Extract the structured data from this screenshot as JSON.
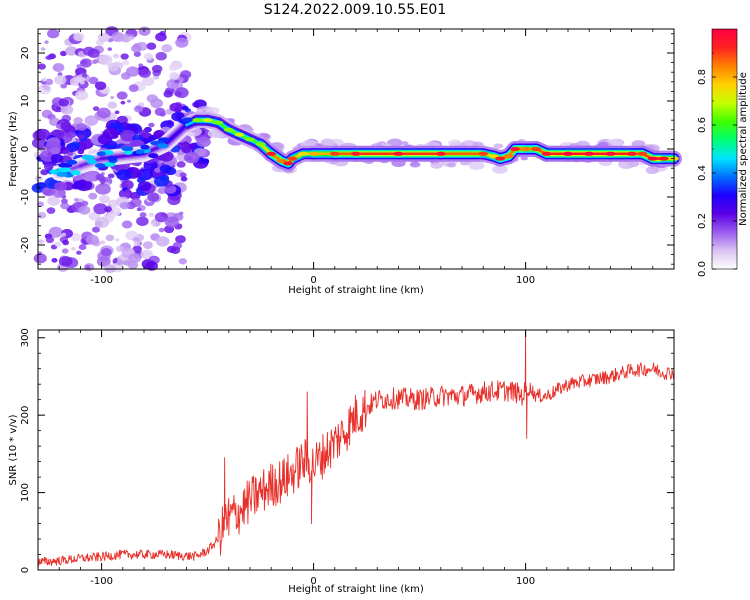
{
  "figure_title": "S124.2022.009.10.55.E01",
  "colors": {
    "snr_line": "#e8302a",
    "spectrum_gradient": [
      "#ffffff",
      "#d9c2f2",
      "#9b5cf0",
      "#5a00e6",
      "#1e00ff",
      "#0070ff",
      "#00e5ff",
      "#00ff70",
      "#40ff00",
      "#c8ff00",
      "#ffd000",
      "#ff8000",
      "#ff2020",
      "#ff0040"
    ]
  },
  "chart_data": [
    {
      "type": "heatmap",
      "title": "",
      "xlabel": "Height of straight line (km)",
      "ylabel": "Frequency (Hz)",
      "xlim": [
        -130,
        170
      ],
      "ylim": [
        -25,
        25
      ],
      "x_ticks": [
        -100,
        0,
        100
      ],
      "y_ticks": [
        -20,
        -10,
        0,
        10,
        20
      ],
      "x_tick_labels": [
        "-100",
        "0",
        "100"
      ],
      "y_tick_labels": [
        "-20",
        "-10",
        "0",
        "10",
        "20"
      ],
      "grid": false,
      "ridge": {
        "x": [
          -120,
          -110,
          -100,
          -90,
          -80,
          -70,
          -60,
          -55,
          -50,
          -45,
          -40,
          -35,
          -30,
          -25,
          -20,
          -15,
          -12,
          -10,
          -5,
          0,
          10,
          20,
          40,
          60,
          80,
          85,
          88,
          92,
          95,
          100,
          105,
          110,
          120,
          130,
          140,
          150,
          155,
          160,
          165,
          170
        ],
        "y": [
          -5,
          -3.5,
          -2,
          -1.5,
          -1,
          1,
          5,
          6,
          6,
          5.5,
          4,
          3,
          2,
          1,
          -1,
          -2.5,
          -3,
          -2,
          -1,
          -1,
          -1,
          -1,
          -1,
          -1,
          -1,
          -1.5,
          -2,
          -1.5,
          0,
          0,
          0,
          -1,
          -1,
          -1,
          -1,
          -1,
          -1,
          -2,
          -2,
          -2
        ],
        "amplitude": [
          0.15,
          0.2,
          0.2,
          0.25,
          0.2,
          0.25,
          0.3,
          0.6,
          0.65,
          0.6,
          0.6,
          0.65,
          0.6,
          0.6,
          0.9,
          0.8,
          0.9,
          0.85,
          0.7,
          0.75,
          0.85,
          0.9,
          0.92,
          0.9,
          0.85,
          0.7,
          0.9,
          0.8,
          0.9,
          0.8,
          0.85,
          0.9,
          0.95,
          0.95,
          0.95,
          0.9,
          0.85,
          0.95,
          0.9,
          0.7
        ]
      },
      "colorbar": {
        "label": "Normalized spectral amplitude",
        "range": [
          0,
          1
        ],
        "ticks": [
          0.0,
          0.2,
          0.4,
          0.6,
          0.8
        ],
        "tick_labels": [
          "0.0",
          "0.2",
          "0.4",
          "0.6",
          "0.8"
        ]
      }
    },
    {
      "type": "line",
      "title": "",
      "xlabel": "Height of straight line (km)",
      "ylabel": "SNR (10 * v/v)",
      "xlim": [
        -130,
        170
      ],
      "ylim": [
        0,
        310
      ],
      "x_ticks": [
        -100,
        0,
        100
      ],
      "y_ticks": [
        0,
        100,
        200,
        300
      ],
      "x_tick_labels": [
        "-100",
        "0",
        "100"
      ],
      "y_tick_labels": [
        "0",
        "100",
        "200",
        "300"
      ],
      "grid": false,
      "series": [
        {
          "x": [
            -130,
            -120,
            -110,
            -100,
            -90,
            -80,
            -70,
            -60,
            -55,
            -50,
            -45,
            -42,
            -40,
            -35,
            -30,
            -25,
            -20,
            -15,
            -10,
            -5,
            -2,
            0,
            5,
            10,
            15,
            20,
            25,
            30,
            40,
            50,
            60,
            70,
            80,
            90,
            95,
            98,
            100,
            102,
            105,
            110,
            120,
            130,
            140,
            150,
            160,
            165,
            170
          ],
          "y": [
            10,
            12,
            15,
            17,
            20,
            20,
            20,
            18,
            18,
            25,
            40,
            60,
            70,
            75,
            90,
            100,
            110,
            115,
            125,
            140,
            140,
            135,
            150,
            165,
            180,
            200,
            210,
            220,
            222,
            220,
            225,
            225,
            230,
            232,
            230,
            225,
            230,
            235,
            225,
            225,
            240,
            245,
            250,
            258,
            260,
            255,
            255
          ],
          "spikes": [
            {
              "x": -42,
              "y": 145
            },
            {
              "x": -40,
              "y": 45
            },
            {
              "x": -3,
              "y": 230
            },
            {
              "x": -1,
              "y": 60
            },
            {
              "x": 100,
              "y": 310
            },
            {
              "x": 100.5,
              "y": 170
            }
          ]
        }
      ]
    }
  ]
}
